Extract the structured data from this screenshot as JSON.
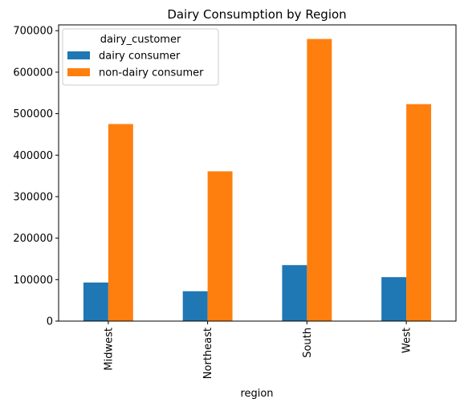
{
  "chart_data": {
    "type": "bar",
    "title": "Dairy Consumption by Region",
    "xlabel": "region",
    "ylabel": "",
    "categories": [
      "Midwest",
      "Northeast",
      "South",
      "West"
    ],
    "series": [
      {
        "name": "dairy consumer",
        "color": "#1f77b4",
        "values": [
          93000,
          72000,
          135000,
          106000
        ]
      },
      {
        "name": "non-dairy consumer",
        "color": "#ff7f0e",
        "values": [
          475000,
          361000,
          680000,
          523000
        ]
      }
    ],
    "ylim": [
      0,
      714000
    ],
    "yticks": [
      0,
      100000,
      200000,
      300000,
      400000,
      500000,
      600000,
      700000
    ],
    "legend": {
      "title": "dairy_customer",
      "placement": "upper-left"
    },
    "grid": false
  }
}
